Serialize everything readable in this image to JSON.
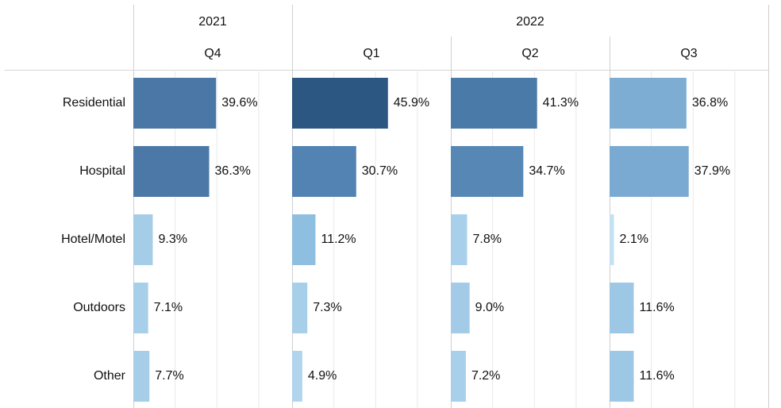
{
  "chart_data": {
    "type": "bar",
    "categories": [
      "Residential",
      "Hospital",
      "Hotel/Motel",
      "Outdoors",
      "Other"
    ],
    "xlim": [
      0,
      76
    ],
    "xticks": [
      0,
      20,
      40,
      60
    ],
    "grid": true,
    "groups": [
      {
        "name": "2021",
        "series": [
          {
            "name": "Q4",
            "values": [
              39.6,
              36.3,
              9.3,
              7.1,
              7.7
            ],
            "value_labels": [
              "39.6%",
              "36.3%",
              "9.3%",
              "7.1%",
              "7.7%"
            ],
            "colors": [
              "#4a77a5",
              "#4b78a7",
              "#a5cde8",
              "#a8cfe9",
              "#a6cee8"
            ]
          }
        ]
      },
      {
        "name": "2022",
        "series": [
          {
            "name": "Q1",
            "values": [
              45.9,
              30.7,
              11.2,
              7.3,
              4.9
            ],
            "value_labels": [
              "45.9%",
              "30.7%",
              "11.2%",
              "7.3%",
              "4.9%"
            ],
            "colors": [
              "#2c5783",
              "#5283b2",
              "#8fbfe0",
              "#a8cfe9",
              "#b0d5ec"
            ]
          },
          {
            "name": "Q2",
            "values": [
              41.3,
              34.7,
              7.8,
              9.0,
              7.2
            ],
            "value_labels": [
              "41.3%",
              "34.7%",
              "7.8%",
              "9.0%",
              "7.2%"
            ],
            "colors": [
              "#4a7aa8",
              "#5687b5",
              "#a9d0ea",
              "#a3cbe7",
              "#a9d0ea"
            ]
          },
          {
            "name": "Q3",
            "values": [
              36.8,
              37.9,
              2.1,
              11.6,
              11.6
            ],
            "value_labels": [
              "36.8%",
              "37.9%",
              "2.1%",
              "11.6%",
              "11.6%"
            ],
            "colors": [
              "#7eadd3",
              "#7aaad1",
              "#c4e1f2",
              "#9dc8e5",
              "#9dc8e5"
            ]
          }
        ]
      }
    ]
  }
}
